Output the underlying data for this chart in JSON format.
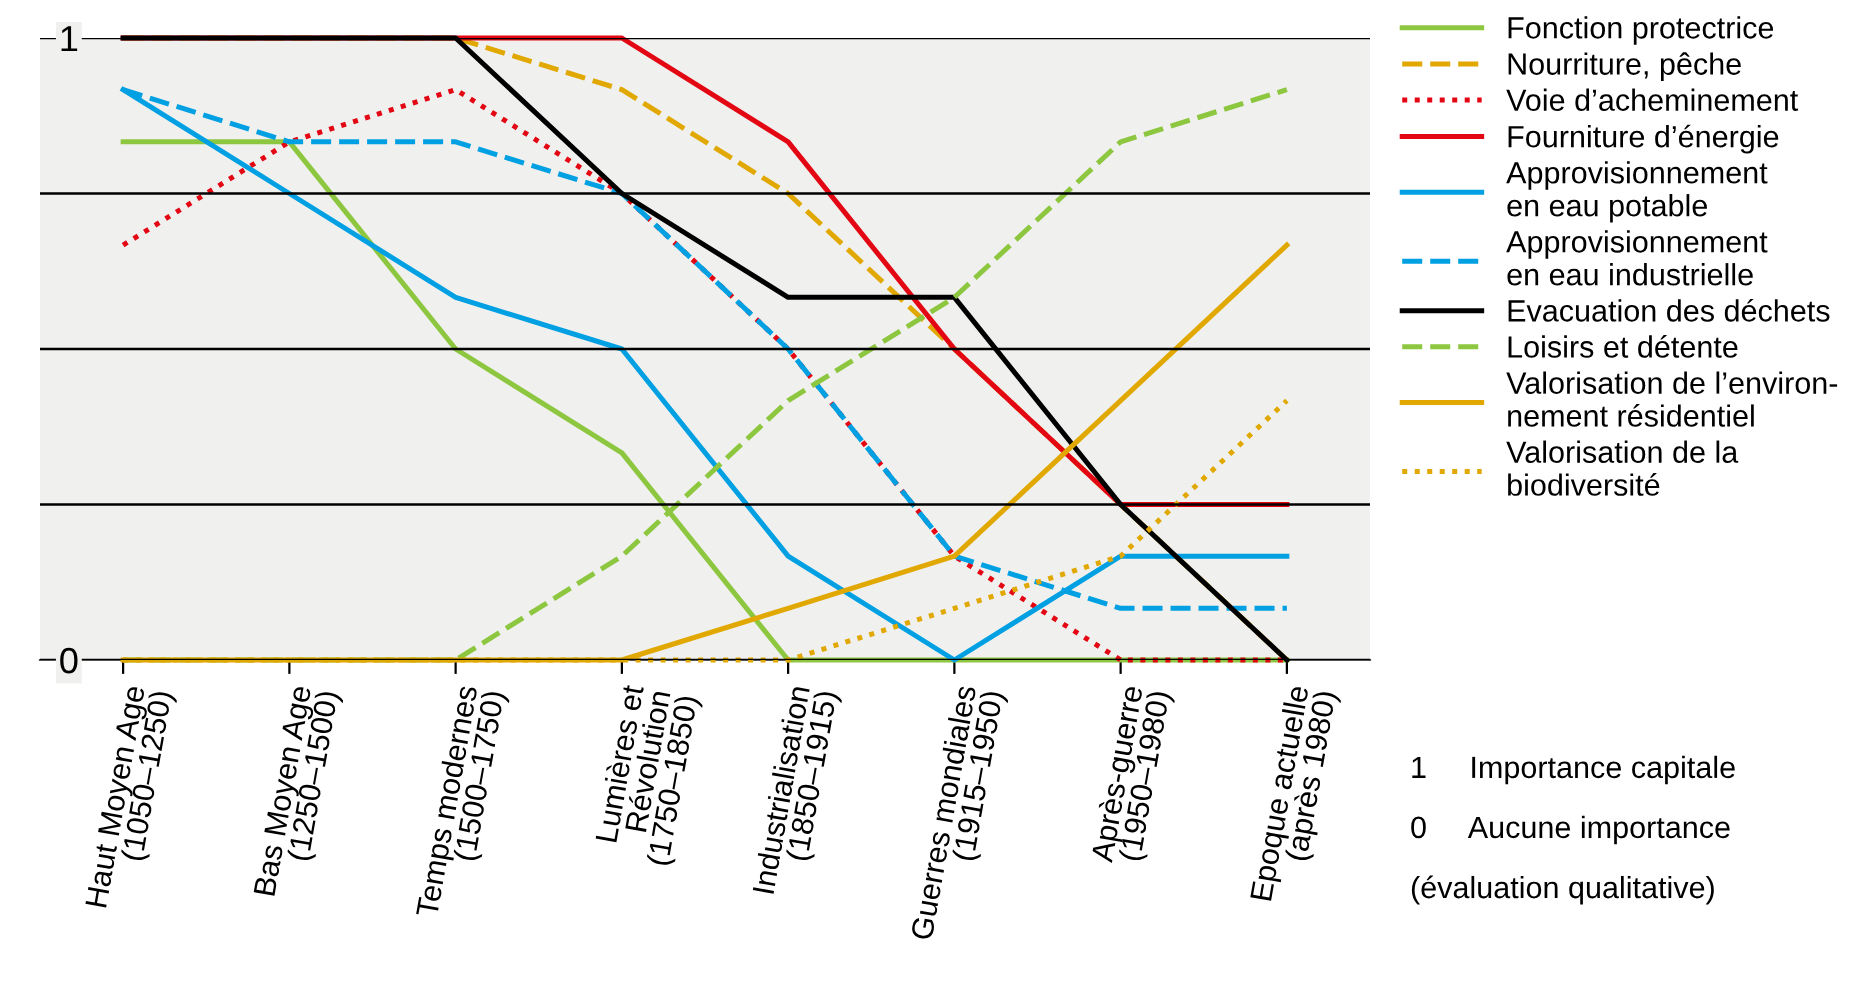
{
  "chart_data": {
    "type": "line",
    "categories": [
      "Haut Moyen Age\n(1050–1250)",
      "Bas Moyen Age\n(1250–1500)",
      "Temps modernes\n(1500–1750)",
      "Lumières et\nRévolution\n(1750–1850)",
      "Industrialisation\n(1850–1915)",
      "Guerres mondiales\n(1915–1950)",
      "Après-guerre\n(1950–1980)",
      "Epoque actuelle\n(après 1980)"
    ],
    "series": [
      {
        "name": "Fonction protectrice",
        "color": "#8dc63f",
        "line_style": "solid",
        "values": [
          0.833,
          0.833,
          0.5,
          0.333,
          0,
          0,
          0,
          0
        ]
      },
      {
        "name": "Nourriture, pêche",
        "color": "#e0a800",
        "line_style": "dashed",
        "values": [
          1,
          1,
          1,
          0.917,
          0.75,
          0.5,
          0.25,
          0
        ]
      },
      {
        "name": "Voie d’acheminement",
        "color": "#e30613",
        "line_style": "dotted",
        "values": [
          0.667,
          0.833,
          0.917,
          0.75,
          0.5,
          0.167,
          0,
          0
        ]
      },
      {
        "name": "Fourniture d’énergie",
        "color": "#e30613",
        "line_style": "solid",
        "values": [
          1,
          1,
          1,
          1,
          0.833,
          0.5,
          0.25,
          0.25
        ]
      },
      {
        "name": "Approvisionnement\nen eau potable",
        "color": "#00a0e3",
        "line_style": "solid",
        "values": [
          0.917,
          0.75,
          0.583,
          0.5,
          0.167,
          0,
          0.167,
          0.167
        ]
      },
      {
        "name": "Approvisionnement\nen eau industrielle",
        "color": "#00a0e3",
        "line_style": "dashed",
        "values": [
          0.917,
          0.833,
          0.833,
          0.75,
          0.5,
          0.167,
          0.083,
          0.083
        ]
      },
      {
        "name": "Evacuation des déchets",
        "color": "#000000",
        "line_style": "solid",
        "values": [
          1,
          1,
          1,
          0.75,
          0.583,
          0.583,
          0.25,
          0
        ]
      },
      {
        "name": "Loisirs et détente",
        "color": "#8dc63f",
        "line_style": "dashed",
        "values": [
          0,
          0,
          0,
          0.167,
          0.417,
          0.583,
          0.833,
          0.917
        ]
      },
      {
        "name": "Valorisation de l’environ-\nnement résidentiel",
        "color": "#e0a800",
        "line_style": "solid",
        "values": [
          0,
          0,
          0,
          0,
          0.083,
          0.167,
          0.417,
          0.667
        ]
      },
      {
        "name": "Valorisation de la\nbiodiversité",
        "color": "#e0a800",
        "line_style": "dotted",
        "values": [
          0,
          0,
          0,
          0,
          0,
          0.083,
          0.167,
          0.417
        ]
      }
    ],
    "ylim": [
      0,
      1
    ],
    "yticks": [
      0,
      {
        "value": 0.25,
        "label": null
      },
      {
        "value": 0.5,
        "label": null
      },
      {
        "value": 0.75,
        "label": null
      },
      1
    ],
    "grid": "y",
    "legend": "right",
    "marker": "none",
    "annotations": [
      "1     Importance capitale",
      "0     Aucune importance",
      "(évaluation qualitative)"
    ]
  }
}
